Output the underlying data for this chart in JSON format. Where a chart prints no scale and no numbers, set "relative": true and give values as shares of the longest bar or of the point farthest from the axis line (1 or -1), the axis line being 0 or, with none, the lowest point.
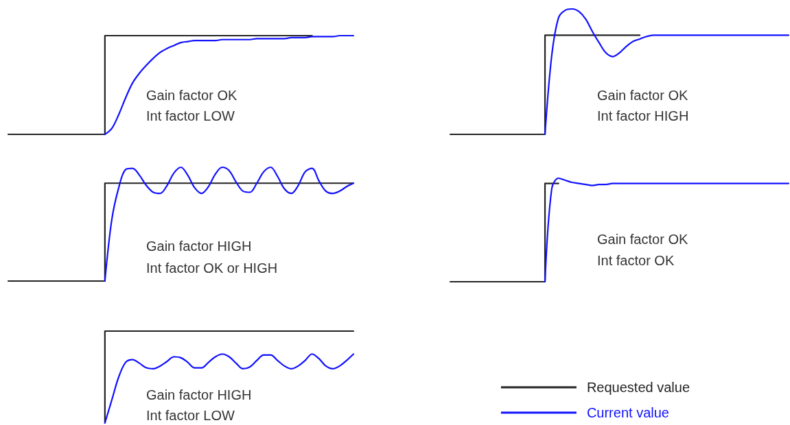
{
  "chart_data": [
    {
      "type": "line",
      "relative": true,
      "marker": "none",
      "annotations": [
        "Gain factor OK",
        "Int factor LOW"
      ],
      "categories": [
        null,
        null,
        null,
        null,
        null,
        null,
        null,
        null,
        null,
        null,
        null,
        null,
        null,
        null,
        null,
        null,
        null,
        null,
        null,
        null,
        null,
        null,
        null,
        null,
        null,
        null,
        null,
        null,
        null,
        null,
        null,
        null,
        null,
        null,
        null,
        null,
        null,
        null,
        null,
        null,
        null,
        null,
        null,
        null,
        null,
        null,
        null,
        null,
        null,
        null,
        null
      ],
      "series": [
        {
          "type": "step",
          "color": "#222222",
          "values": [
            0,
            0,
            0,
            0,
            0,
            0,
            0,
            0,
            0,
            0,
            0,
            0,
            0,
            0,
            0,
            1,
            1,
            1,
            1,
            1,
            1,
            1,
            1,
            1,
            1,
            1,
            1,
            1,
            1,
            1,
            1,
            1,
            1,
            1,
            1,
            1,
            1,
            1,
            1,
            1,
            1,
            1,
            1,
            1,
            1,
            null,
            null,
            null,
            null,
            null,
            null
          ]
        },
        {
          "type": "line",
          "color": "#1010ff",
          "values": [
            null,
            null,
            null,
            null,
            null,
            null,
            null,
            null,
            null,
            null,
            null,
            null,
            null,
            null,
            0,
            0.06,
            0.2,
            0.37,
            0.52,
            0.62,
            0.7,
            0.77,
            0.83,
            0.87,
            0.9,
            0.93,
            0.94,
            0.95,
            0.95,
            0.95,
            0.95,
            0.96,
            0.96,
            0.96,
            0.96,
            0.96,
            0.97,
            0.97,
            0.97,
            0.97,
            0.97,
            0.98,
            0.98,
            0.98,
            0.99,
            0.99,
            0.99,
            0.99,
            1,
            1,
            1
          ]
        }
      ]
    },
    {
      "type": "line",
      "relative": true,
      "marker": "none",
      "annotations": [
        "Gain factor OK",
        "Int factor HIGH"
      ],
      "categories": [
        null,
        null,
        null,
        null,
        null,
        null,
        null,
        null,
        null,
        null,
        null,
        null,
        null,
        null,
        null,
        null,
        null,
        null,
        null,
        null,
        null,
        null,
        null,
        null,
        null,
        null,
        null,
        null,
        null,
        null,
        null,
        null,
        null,
        null,
        null,
        null,
        null,
        null,
        null,
        null,
        null,
        null,
        null,
        null,
        null,
        null,
        null,
        null,
        null,
        null,
        null
      ],
      "series": [
        {
          "type": "step",
          "color": "#222222",
          "values": [
            0,
            0,
            0,
            0,
            0,
            0,
            0,
            0,
            0,
            0,
            0,
            0,
            0,
            0,
            0,
            0.79,
            0.79,
            0.79,
            0.79,
            0.79,
            0.79,
            0.79,
            0.79,
            0.79,
            0.79,
            0.79,
            0.79,
            0.79,
            0.79,
            null,
            null,
            null,
            null,
            null,
            null,
            null,
            null,
            null,
            null,
            null,
            null,
            null,
            null,
            null,
            null,
            null,
            null,
            null,
            null,
            null,
            null
          ]
        },
        {
          "type": "line",
          "color": "#1010ff",
          "values": [
            null,
            null,
            null,
            null,
            null,
            null,
            null,
            null,
            null,
            null,
            null,
            null,
            null,
            null,
            0,
            0.63,
            0.93,
            0.99,
            1,
            0.98,
            0.92,
            0.82,
            0.73,
            0.65,
            0.62,
            0.65,
            0.7,
            0.74,
            0.76,
            0.78,
            0.79,
            0.79,
            0.79,
            0.79,
            0.79,
            0.79,
            0.79,
            0.79,
            0.79,
            0.79,
            0.79,
            0.79,
            0.79,
            0.79,
            0.79,
            0.79,
            0.79,
            0.79,
            0.79,
            0.79,
            0.79
          ]
        }
      ]
    },
    {
      "type": "line",
      "relative": true,
      "marker": "none",
      "annotations": [
        "Gain factor HIGH",
        "Int factor OK or HIGH"
      ],
      "categories": [
        null,
        null,
        null,
        null,
        null,
        null,
        null,
        null,
        null,
        null,
        null,
        null,
        null,
        null,
        null,
        null,
        null,
        null,
        null,
        null,
        null,
        null,
        null,
        null,
        null,
        null,
        null,
        null,
        null,
        null,
        null,
        null,
        null,
        null,
        null,
        null,
        null,
        null,
        null,
        null,
        null,
        null,
        null,
        null,
        null,
        null,
        null,
        null,
        null,
        null,
        null
      ],
      "series": [
        {
          "type": "step",
          "color": "#222222",
          "values": [
            0,
            0,
            0,
            0,
            0,
            0,
            0,
            0,
            0,
            0,
            0,
            0,
            0,
            0,
            0,
            0.86,
            0.86,
            0.86,
            0.86,
            0.86,
            0.86,
            0.86,
            0.86,
            0.86,
            0.86,
            0.86,
            0.86,
            0.86,
            0.86,
            0.86,
            0.86,
            0.86,
            0.86,
            0.86,
            0.86,
            0.86,
            0.86,
            0.86,
            0.86,
            0.86,
            0.86,
            0.86,
            0.86,
            0.86,
            0.86,
            0.86,
            0.86,
            0.86,
            0.86,
            0.86,
            0.86
          ]
        },
        {
          "type": "line",
          "color": "#1010ff",
          "values": [
            null,
            null,
            null,
            null,
            null,
            null,
            null,
            null,
            null,
            null,
            null,
            null,
            null,
            null,
            0,
            0.54,
            0.82,
            0.98,
            0.99,
            0.93,
            0.84,
            0.78,
            0.77,
            0.84,
            0.95,
            1,
            0.93,
            0.82,
            0.77,
            0.83,
            0.94,
            1,
            0.97,
            0.87,
            0.79,
            0.78,
            0.86,
            0.96,
            1,
            0.92,
            0.81,
            0.77,
            0.84,
            0.96,
            0.99,
            0.88,
            0.79,
            0.77,
            0.79,
            0.83,
            0.86
          ]
        }
      ]
    },
    {
      "type": "line",
      "relative": true,
      "marker": "none",
      "annotations": [
        "Gain factor OK",
        "Int factor OK"
      ],
      "categories": [
        null,
        null,
        null,
        null,
        null,
        null,
        null,
        null,
        null,
        null,
        null,
        null,
        null,
        null,
        null,
        null,
        null,
        null,
        null,
        null,
        null,
        null,
        null,
        null,
        null,
        null,
        null,
        null,
        null,
        null,
        null,
        null,
        null,
        null,
        null,
        null,
        null,
        null,
        null,
        null,
        null,
        null,
        null,
        null,
        null,
        null,
        null,
        null,
        null,
        null,
        null
      ],
      "series": [
        {
          "type": "step",
          "color": "#222222",
          "values": [
            0,
            0,
            0,
            0,
            0,
            0,
            0,
            0,
            0,
            0,
            0,
            0,
            0,
            0,
            0,
            0.95,
            0.95,
            null,
            null,
            null,
            null,
            null,
            null,
            null,
            null,
            null,
            null,
            null,
            null,
            null,
            null,
            null,
            null,
            null,
            null,
            null,
            null,
            null,
            null,
            null,
            null,
            null,
            null,
            null,
            null,
            null,
            null,
            null,
            null,
            null,
            null
          ]
        },
        {
          "type": "line",
          "color": "#1010ff",
          "values": [
            null,
            null,
            null,
            null,
            null,
            null,
            null,
            null,
            null,
            null,
            null,
            null,
            null,
            null,
            0,
            0.9,
            1,
            0.98,
            0.96,
            0.95,
            0.94,
            0.93,
            0.94,
            0.94,
            0.95,
            0.95,
            0.95,
            0.95,
            0.95,
            0.95,
            0.95,
            0.95,
            0.95,
            0.95,
            0.95,
            0.95,
            0.95,
            0.95,
            0.95,
            0.95,
            0.95,
            0.95,
            0.95,
            0.95,
            0.95,
            0.95,
            0.95,
            0.95,
            0.95,
            0.95,
            0.95
          ]
        }
      ]
    },
    {
      "type": "line",
      "relative": true,
      "marker": "none",
      "legend": "bottom right",
      "annotations": [
        "Gain factor HIGH",
        "Int factor LOW"
      ],
      "categories": [
        null,
        null,
        null,
        null,
        null,
        null,
        null,
        null,
        null,
        null,
        null,
        null,
        null,
        null,
        null,
        null,
        null,
        null,
        null,
        null,
        null,
        null,
        null,
        null,
        null,
        null,
        null,
        null,
        null,
        null,
        null,
        null,
        null,
        null,
        null,
        null,
        null,
        null,
        null,
        null,
        null,
        null,
        null,
        null,
        null,
        null,
        null,
        null,
        null,
        null,
        null
      ],
      "series": [
        {
          "name": "Requested value",
          "type": "step",
          "color": "#222222",
          "values": [
            null,
            null,
            null,
            null,
            null,
            null,
            null,
            null,
            null,
            null,
            null,
            null,
            null,
            null,
            0,
            1,
            1,
            1,
            1,
            1,
            1,
            1,
            1,
            1,
            1,
            1,
            1,
            1,
            1,
            1,
            1,
            1,
            1,
            1,
            1,
            1,
            1,
            1,
            1,
            1,
            1,
            1,
            1,
            1,
            1,
            1,
            1,
            1,
            1,
            1,
            1
          ]
        },
        {
          "name": "Current value",
          "type": "line",
          "color": "#1010ff",
          "values": [
            null,
            null,
            null,
            null,
            null,
            null,
            null,
            null,
            null,
            null,
            null,
            null,
            null,
            null,
            0,
            0.25,
            0.5,
            0.66,
            0.69,
            0.65,
            0.6,
            0.59,
            0.62,
            0.67,
            0.72,
            0.71,
            0.66,
            0.6,
            0.6,
            0.66,
            0.72,
            0.75,
            0.72,
            0.65,
            0.59,
            0.61,
            0.68,
            0.74,
            0.74,
            0.68,
            0.62,
            0.59,
            0.62,
            0.68,
            0.75,
            0.7,
            0.62,
            0.59,
            0.62,
            0.68,
            0.75
          ]
        }
      ]
    }
  ]
}
